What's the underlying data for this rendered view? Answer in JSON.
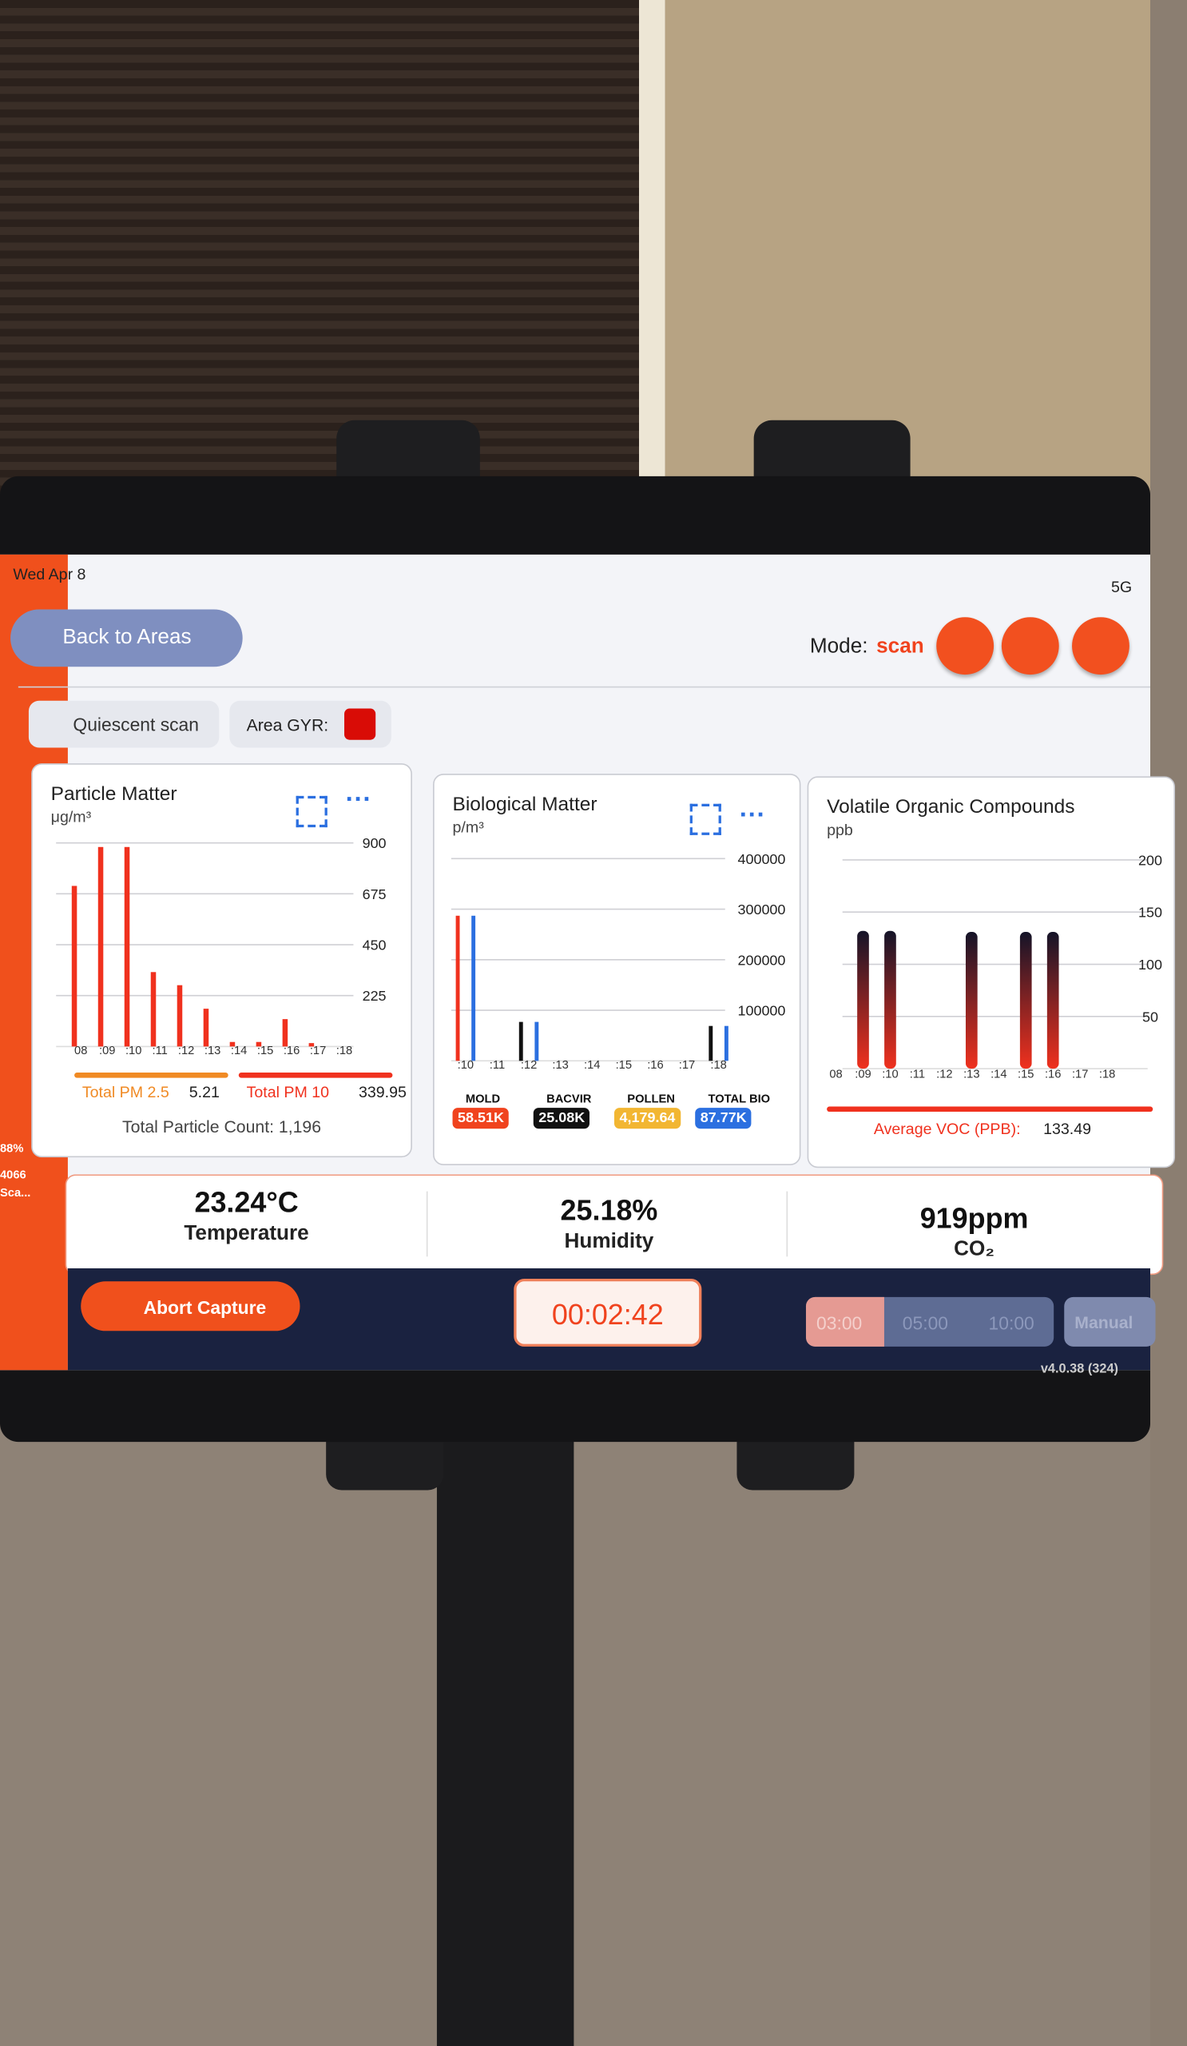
{
  "status_bar": {
    "date": "Wed Apr 8",
    "network": "5G"
  },
  "header": {
    "back_button": "Back to Areas",
    "mode_label": "Mode:",
    "mode_value": "scan"
  },
  "filters": {
    "scan_type": "Quiescent scan",
    "area_label": "Area GYR:"
  },
  "sidebar": [
    "88%",
    "4066",
    "Sca..."
  ],
  "panels": [
    {
      "title": "Particle Matter",
      "unit": "μg/m³",
      "categories": [
        "08",
        ":09",
        ":10",
        ":11",
        ":12",
        ":13",
        ":14",
        ":15",
        ":16",
        ":17",
        ":18"
      ],
      "ylim": [
        0,
        900
      ],
      "yticks": [
        900,
        675,
        450,
        225
      ],
      "series": [
        {
          "color": "#f0311e",
          "values": [
            710,
            882,
            882,
            329,
            271,
            167,
            20,
            20,
            121,
            15,
            null
          ]
        }
      ],
      "summary": [
        {
          "label": "Total PM 2.5",
          "value": 5.21,
          "color": "#f08a24"
        },
        {
          "label": "Total PM 10",
          "value": 339.95,
          "color": "#f0311e"
        }
      ],
      "footer": "Total Particle Count: 1,196"
    },
    {
      "title": "Biological Matter",
      "unit": "p/m³",
      "categories": [
        ":10",
        ":11",
        ":12",
        ":13",
        ":14",
        ":15",
        ":16",
        ":17",
        ":18"
      ],
      "ylim": [
        0,
        400000
      ],
      "yticks": [
        400000,
        300000,
        200000,
        100000
      ],
      "series": [
        {
          "color": "#f0311e",
          "values": [
            287000,
            null,
            null,
            null,
            null,
            null,
            null,
            null,
            null
          ]
        },
        {
          "color": "#111111",
          "values": [
            null,
            null,
            77000,
            null,
            null,
            null,
            null,
            null,
            69000
          ]
        },
        {
          "color": "#2b6fe0",
          "values": [
            287000,
            null,
            77000,
            null,
            null,
            null,
            null,
            null,
            69000
          ]
        }
      ],
      "badges": [
        {
          "label": "MOLD",
          "value": "58.51K",
          "color": "#f0431e"
        },
        {
          "label": "BACVIR",
          "value": "25.08K",
          "color": "#111111"
        },
        {
          "label": "POLLEN",
          "value": "4,179.64",
          "color": "#f2b632"
        },
        {
          "label": "TOTAL BIO",
          "value": "87.77K",
          "color": "#2b6fe0"
        }
      ]
    },
    {
      "title": "Volatile Organic Compounds",
      "unit": "ppb",
      "categories": [
        "08",
        ":09",
        ":10",
        ":11",
        ":12",
        ":13",
        ":14",
        ":15",
        ":16",
        ":17",
        ":18"
      ],
      "ylim": [
        0,
        200
      ],
      "yticks": [
        200,
        150,
        100,
        50
      ],
      "series": [
        {
          "color": "#f0311e",
          "values": [
            null,
            132,
            132,
            null,
            null,
            131,
            null,
            131,
            131,
            null,
            null
          ]
        }
      ],
      "summary": [
        {
          "label": "Average VOC (PPB):",
          "value": 133.49,
          "color": "#f0311e"
        }
      ]
    }
  ],
  "metrics": [
    {
      "value": "23.24°C",
      "label": "Temperature"
    },
    {
      "value": "25.18%",
      "label": "Humidity"
    },
    {
      "value": "919ppm",
      "label": "CO₂"
    }
  ],
  "footer": {
    "abort": "Abort Capture",
    "timer": "00:02:42",
    "durations": [
      "03:00",
      "05:00",
      "10:00"
    ],
    "manual": "Manual",
    "version": "v4.0.38 (324)"
  }
}
